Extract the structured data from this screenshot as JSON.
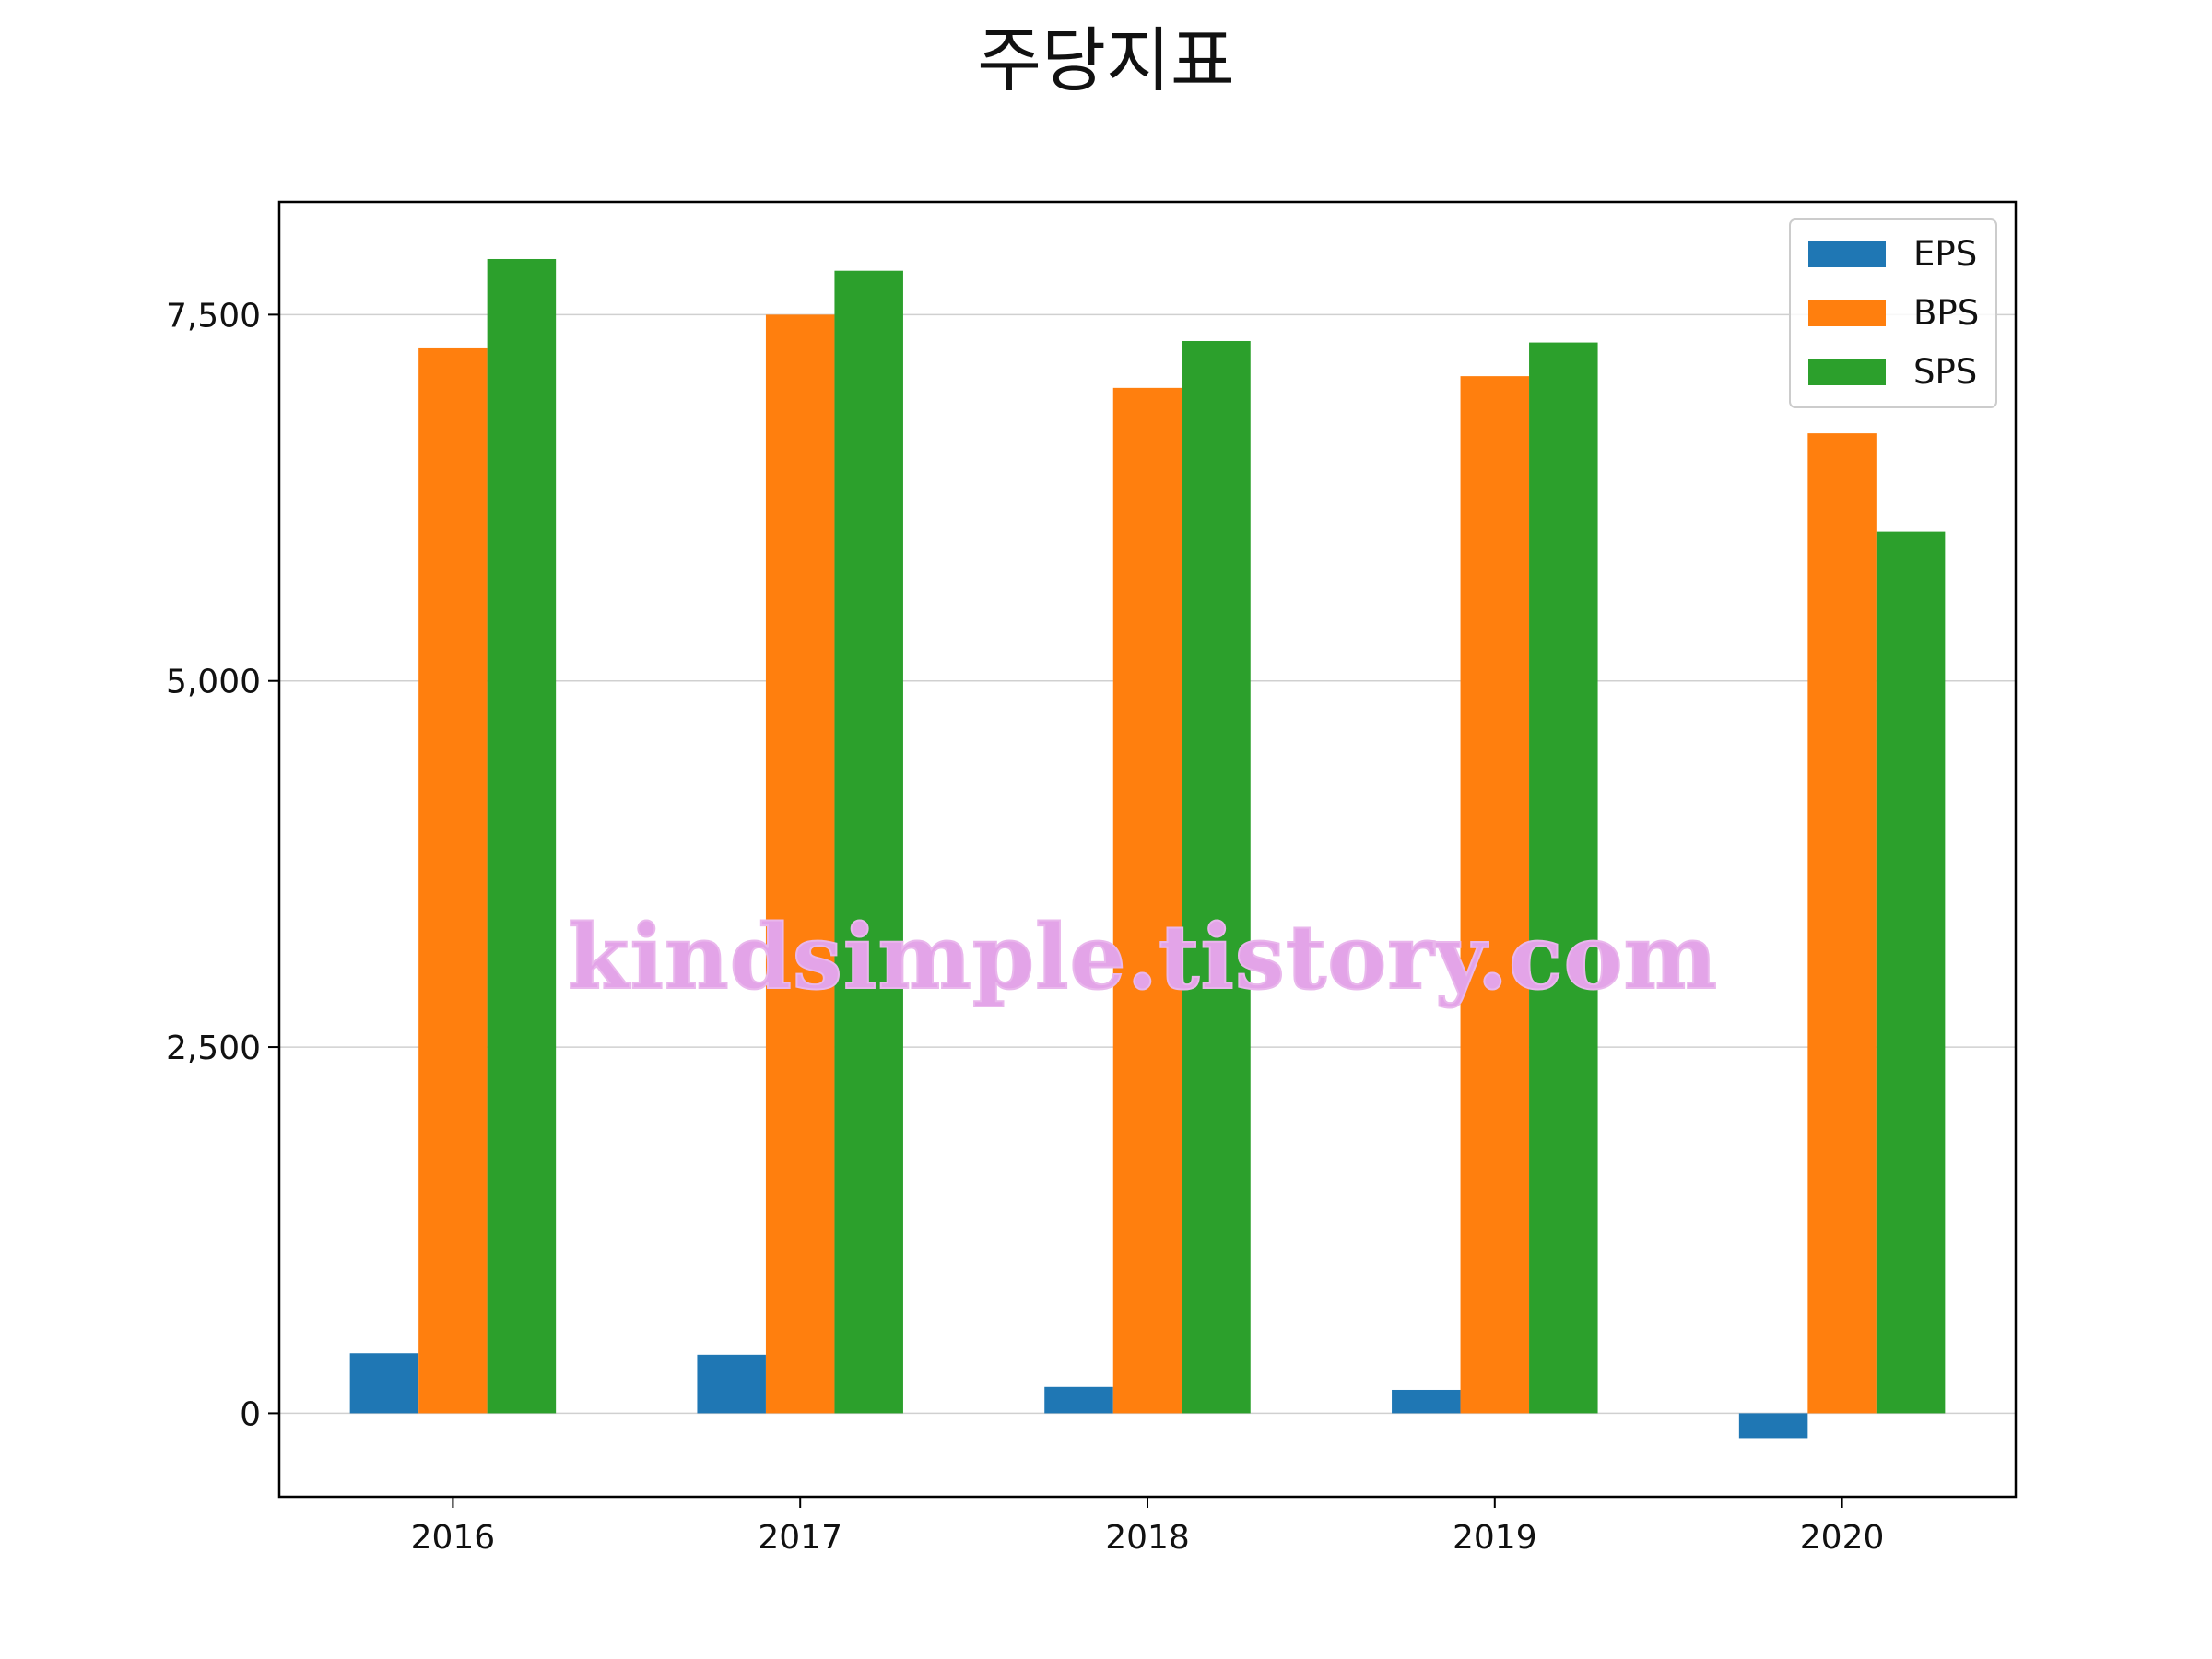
{
  "chart_data": {
    "type": "bar",
    "title": "주당지표",
    "xlabel": "",
    "ylabel": "",
    "categories": [
      "2016",
      "2017",
      "2018",
      "2019",
      "2020"
    ],
    "series": [
      {
        "name": "EPS",
        "color": "#1f77b4",
        "values": [
          410,
          400,
          180,
          160,
          -170
        ]
      },
      {
        "name": "BPS",
        "color": "#ff7f0e",
        "values": [
          7270,
          7500,
          7000,
          7080,
          6690
        ]
      },
      {
        "name": "SPS",
        "color": "#2ca02c",
        "values": [
          7880,
          7800,
          7320,
          7310,
          6020
        ]
      }
    ],
    "ylim": [
      -570,
      8270
    ],
    "yticks": [
      0,
      2500,
      5000,
      7500
    ],
    "ytick_labels": [
      "0",
      "2,500",
      "5,000",
      "7,500"
    ],
    "grid": "y",
    "legend_position": "top-right"
  },
  "watermark": "kindsimple.tistory.com"
}
